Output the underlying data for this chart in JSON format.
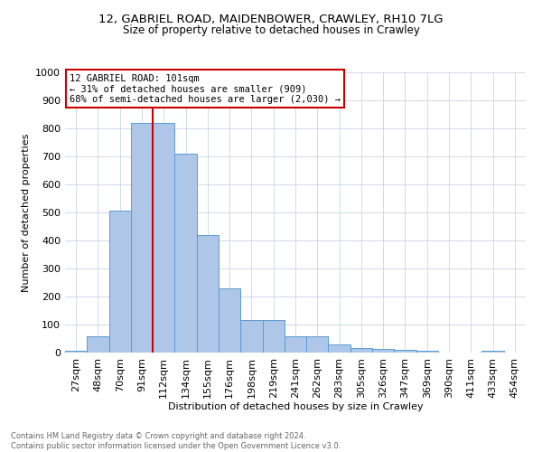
{
  "title1": "12, GABRIEL ROAD, MAIDENBOWER, CRAWLEY, RH10 7LG",
  "title2": "Size of property relative to detached houses in Crawley",
  "xlabel": "Distribution of detached houses by size in Crawley",
  "ylabel": "Number of detached properties",
  "bin_labels": [
    "27sqm",
    "48sqm",
    "70sqm",
    "91sqm",
    "112sqm",
    "134sqm",
    "155sqm",
    "176sqm",
    "198sqm",
    "219sqm",
    "241sqm",
    "262sqm",
    "283sqm",
    "305sqm",
    "326sqm",
    "347sqm",
    "369sqm",
    "390sqm",
    "411sqm",
    "433sqm",
    "454sqm"
  ],
  "bar_values": [
    8,
    58,
    505,
    820,
    820,
    710,
    420,
    230,
    115,
    115,
    57,
    57,
    30,
    15,
    13,
    10,
    8,
    0,
    0,
    8,
    0
  ],
  "bar_color": "#aec6e8",
  "bar_edge_color": "#5b9bd5",
  "property_line_bin": 3.5,
  "annotation_text": "12 GABRIEL ROAD: 101sqm\n← 31% of detached houses are smaller (909)\n68% of semi-detached houses are larger (2,030) →",
  "annotation_box_color": "#ffffff",
  "annotation_box_edge_color": "#cc0000",
  "vline_color": "#cc0000",
  "footnote": "Contains HM Land Registry data © Crown copyright and database right 2024.\nContains public sector information licensed under the Open Government Licence v3.0.",
  "ylim": [
    0,
    1000
  ],
  "background_color": "#ffffff",
  "grid_color": "#c8d4e8"
}
